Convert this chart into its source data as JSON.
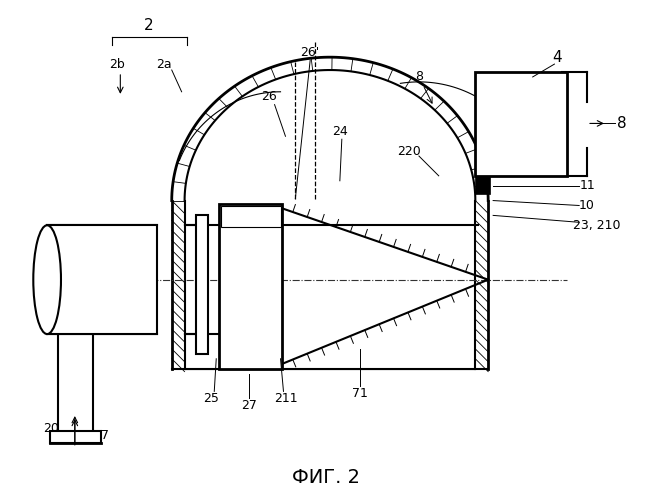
{
  "title": "ФИГ. 2",
  "bg_color": "#ffffff",
  "line_color": "#000000",
  "title_fontsize": 14,
  "fig_width": 6.53,
  "fig_height": 5.0
}
